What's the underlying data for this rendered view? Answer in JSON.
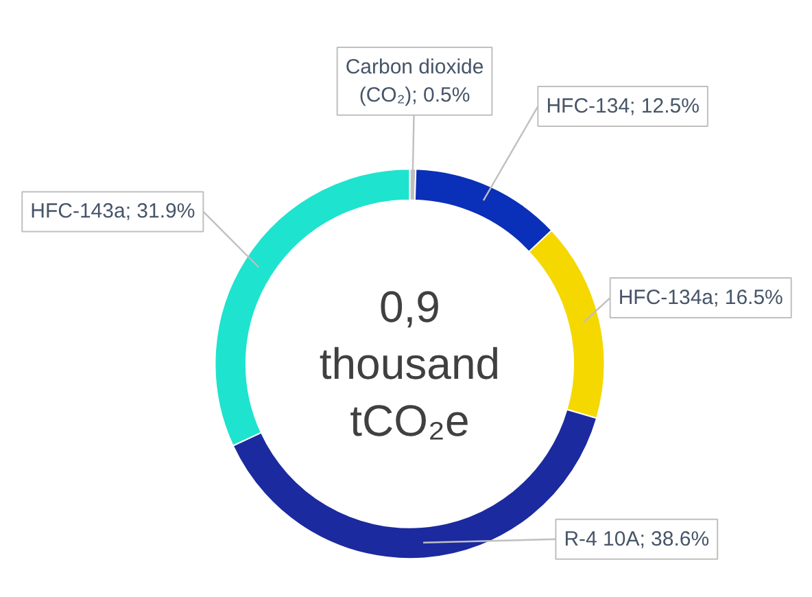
{
  "chart_data": {
    "type": "donut",
    "categories": [
      "Carbon dioxide (CO₂)",
      "HFC-134",
      "HFC-134a",
      "R-4 10A",
      "HFC-143a"
    ],
    "values": [
      0.5,
      12.5,
      16.5,
      38.6,
      31.9
    ],
    "colors": [
      "#bfbfbf",
      "#0a2fb8",
      "#f5d800",
      "#1b2a9e",
      "#1ee3cf"
    ],
    "value_labels": [
      "0.5%",
      "12.5%",
      "16.5%",
      "38.6%",
      "31.9%"
    ],
    "annotations": [
      "0,9\nthousand\ntCO₂e"
    ]
  }
}
